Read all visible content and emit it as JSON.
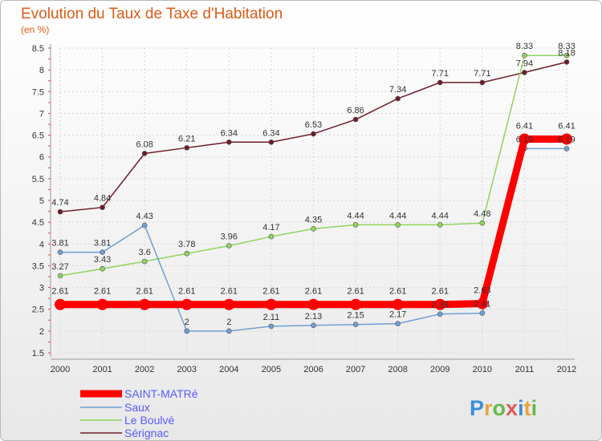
{
  "chart_data": {
    "type": "line",
    "title": "Evolution du Taux de Taxe d'Habitation",
    "unit_label": "(en %)",
    "x": [
      "2000",
      "2001",
      "2002",
      "2003",
      "2004",
      "2005",
      "2006",
      "2007",
      "2008",
      "2009",
      "2010",
      "2011",
      "2012"
    ],
    "ylim": [
      1.5,
      8.5
    ],
    "y_ticks": [
      "1.5",
      "2",
      "2.5",
      "3",
      "3.5",
      "4",
      "4.5",
      "5",
      "5.5",
      "6",
      "6.5",
      "7",
      "7.5",
      "8",
      "8.5"
    ],
    "grid": true,
    "legend_position": "bottom-left",
    "series": [
      {
        "name": "SAINT-MATRé",
        "color": "#ff0000",
        "values": [
          2.61,
          2.61,
          2.61,
          2.61,
          2.61,
          2.61,
          2.61,
          2.61,
          2.61,
          2.61,
          2.63,
          6.41,
          6.41
        ],
        "labels": [
          "2.61",
          "2.61",
          "2.61",
          "2.61",
          "2.61",
          "2.61",
          "2.61",
          "2.61",
          "2.61",
          "2.61",
          "2.63",
          "6.41",
          "6.41"
        ]
      },
      {
        "name": "Saux",
        "color": "#6fa0d3",
        "values": [
          3.81,
          3.81,
          4.43,
          2,
          2,
          2.11,
          2.13,
          2.15,
          2.17,
          2.39,
          2.41,
          6.19,
          6.19
        ],
        "labels": [
          "3.81",
          "3.81",
          "4.43",
          "2",
          "2",
          "2.11",
          "2.13",
          "2.15",
          "2.17",
          "2.39",
          "2.41",
          "6.19",
          "6.19"
        ]
      },
      {
        "name": "Le Boulvé",
        "color": "#8fd45f",
        "values": [
          3.27,
          3.43,
          3.6,
          3.78,
          3.96,
          4.17,
          4.35,
          4.44,
          4.44,
          4.44,
          4.48,
          8.33,
          8.33
        ],
        "labels": [
          "3.27",
          "3.43",
          "3.6",
          "3.78",
          "3.96",
          "4.17",
          "4.35",
          "4.44",
          "4.44",
          "4.44",
          "4.48",
          "8.33",
          "8.33"
        ]
      },
      {
        "name": "Sérignac",
        "color": "#6e1c2a",
        "values": [
          4.74,
          4.84,
          6.08,
          6.21,
          6.34,
          6.34,
          6.53,
          6.86,
          7.34,
          7.71,
          7.71,
          7.94,
          8.18
        ],
        "labels": [
          "4.74",
          "4.84",
          "6.08",
          "6.21",
          "6.34",
          "6.34",
          "6.53",
          "6.86",
          "7.34",
          "7.71",
          "7.71",
          "7.94",
          "8.18"
        ]
      }
    ],
    "legend_text_color": "#5a5aff",
    "logo_text": "Proxiti"
  }
}
